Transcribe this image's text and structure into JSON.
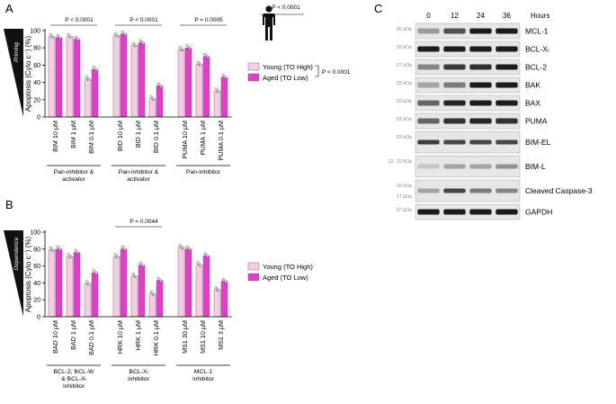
{
  "panels": {
    "a": "A",
    "b": "B",
    "c": "C"
  },
  "colors": {
    "young": "#f7cde6",
    "aged": "#e040c8",
    "blot_bg": "#e6e6e6",
    "band": "#111111"
  },
  "icons": [
    "human-silhouette-icon"
  ],
  "chart_data": [
    {
      "type": "bar",
      "panel": "A",
      "ylabel": "Apoptosis (Cyto c⁻) (%)",
      "wedge_label": "Priming",
      "ylim": [
        0,
        100
      ],
      "yticks": [
        0,
        20,
        40,
        60,
        80,
        100
      ],
      "categories": [
        "BIM 10 μM",
        "BIM 1 μM",
        "BIM 0.1 μM",
        "BID 10 μM",
        "BID 1 μM",
        "BID 0.1 μM",
        "PUMA 10 μM",
        "PUMA 1 μM",
        "PUMA 0.1 μM"
      ],
      "groups": [
        {
          "label": "Pan-inhibitor &\nactivator",
          "pvalue": "P < 0.0001",
          "start": 0,
          "count": 3
        },
        {
          "label": "Pan-inhibitor &\nactivator",
          "pvalue": "P < 0.0001",
          "start": 3,
          "count": 3
        },
        {
          "label": "Pan-inhibitor",
          "pvalue": "P = 0.0005",
          "start": 6,
          "count": 3
        }
      ],
      "top_pvalue": "P < 0.0001",
      "series": [
        {
          "name": "Young (TO High)",
          "values": [
            93,
            93,
            44,
            94,
            83,
            21,
            78,
            61,
            30
          ]
        },
        {
          "name": "Aged (TO Low)",
          "values": [
            92,
            90,
            55,
            96,
            86,
            36,
            80,
            70,
            46
          ]
        }
      ],
      "legend_pvalue": "P < 0.0001"
    },
    {
      "type": "bar",
      "panel": "B",
      "ylabel": "Apoptosis (Cyto c⁻) (%)",
      "wedge_label": "Dependence",
      "ylim": [
        0,
        100
      ],
      "yticks": [
        0,
        20,
        40,
        60,
        80,
        100
      ],
      "categories": [
        "BAD 10 μM",
        "BAD 1 μM",
        "BAD 0.1 μM",
        "HRK 10 μM",
        "HRK 1 μM",
        "HRK 0.1 μM",
        "MS1 30 μM",
        "MS1 10 μM",
        "MS1 3 μM"
      ],
      "groups": [
        {
          "label": "BCL-2, BCL-W\n& BCL-Xₗ\ninhibitor",
          "pvalue": "",
          "start": 0,
          "count": 3
        },
        {
          "label": "BCL-Xₗ\ninhibitor",
          "pvalue": "P = 0.0044",
          "start": 3,
          "count": 3
        },
        {
          "label": "MCL-1\ninhibitor",
          "pvalue": "",
          "start": 6,
          "count": 3
        }
      ],
      "series": [
        {
          "name": "Young (TO High)",
          "values": [
            79,
            71,
            39,
            71,
            48,
            27,
            82,
            61,
            32
          ]
        },
        {
          "name": "Aged (TO Low)",
          "values": [
            80,
            76,
            52,
            80,
            61,
            43,
            80,
            72,
            42
          ]
        }
      ]
    }
  ],
  "blot": {
    "timepoints": [
      "0",
      "12",
      "24",
      "36"
    ],
    "time_label": "Hours",
    "rows": [
      {
        "mw": "35 kDa",
        "label": "MCL-1",
        "intensity": [
          0.35,
          0.7,
          0.95,
          0.95
        ],
        "tall": false
      },
      {
        "mw": "30 kDa",
        "label": "BCL-Xₗ",
        "intensity": [
          0.95,
          0.95,
          0.95,
          0.95
        ],
        "tall": false
      },
      {
        "mw": "27 kDa",
        "label": "BCL-2",
        "intensity": [
          0.45,
          0.8,
          0.85,
          0.95
        ],
        "tall": false
      },
      {
        "mw": "25 kDa",
        "label": "BAK",
        "intensity": [
          0.3,
          0.5,
          0.95,
          0.95
        ],
        "tall": false
      },
      {
        "mw": "20 kDa",
        "label": "BAX",
        "intensity": [
          0.6,
          0.9,
          0.95,
          0.95
        ],
        "tall": false
      },
      {
        "mw": "23 kDa",
        "label": "PUMA",
        "intensity": [
          0.6,
          0.85,
          0.9,
          0.85
        ],
        "tall": false
      },
      {
        "mw": "23 kDa",
        "label": "BIM-EL",
        "intensity": [
          0.8,
          0.75,
          0.75,
          0.75
        ],
        "tall": true
      },
      {
        "mw": "12, 15 kDa",
        "label": "BIM-L",
        "intensity": [
          0.15,
          0.3,
          0.3,
          0.4
        ],
        "tall": true
      },
      {
        "mw": "19 kDa",
        "label": "Cleaved Caspase-3",
        "intensity": [
          0.3,
          0.75,
          0.5,
          0.45
        ],
        "tall": true,
        "mw2": "17 kDa"
      },
      {
        "mw": "37 kDa",
        "label": "GAPDH",
        "intensity": [
          0.95,
          0.95,
          0.95,
          0.95
        ],
        "tall": false
      }
    ]
  }
}
